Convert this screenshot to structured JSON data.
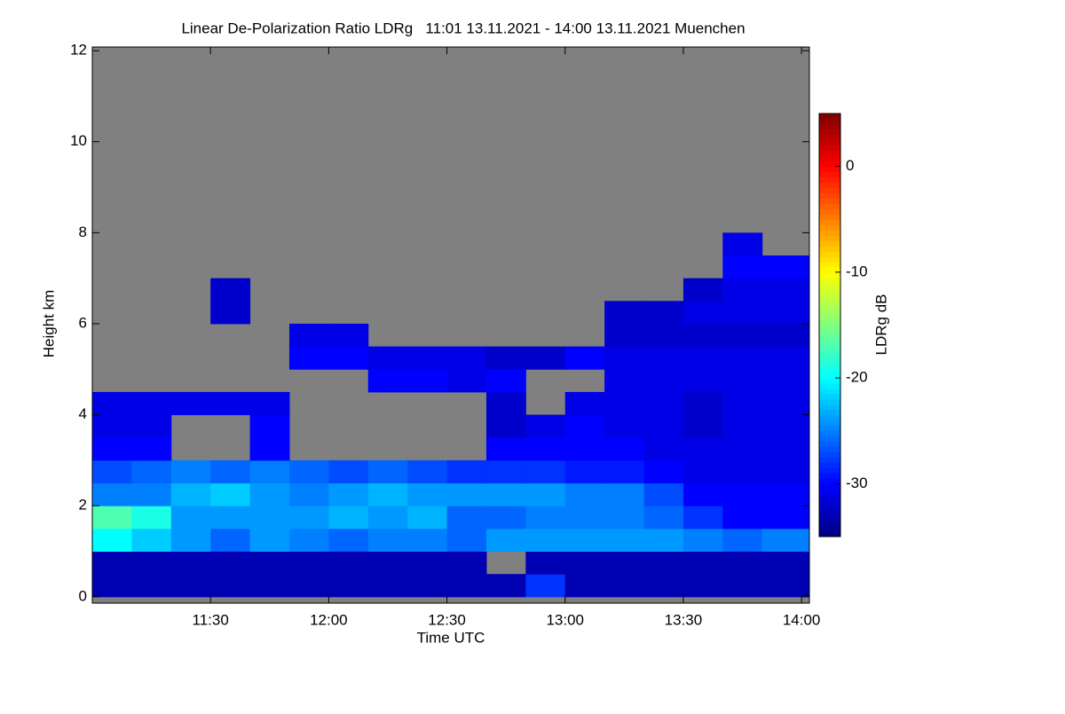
{
  "chart_data": {
    "type": "heatmap",
    "title": "Linear De-Polarization Ratio LDRg   11:01 13.11.2021 - 14:00 13.11.2021 Muenchen",
    "x_label": "Time UTC",
    "y_label": "Height km",
    "colorbar_label": "LDRg dB",
    "colormap": "jet",
    "missing_color": "#808080",
    "x": [
      "11:00",
      "11:10",
      "11:20",
      "11:30",
      "11:40",
      "11:50",
      "12:00",
      "12:10",
      "12:20",
      "12:30",
      "12:40",
      "12:50",
      "13:00",
      "13:10",
      "13:20",
      "13:30",
      "13:40",
      "13:50",
      "14:02"
    ],
    "y": [
      0,
      0.5,
      1,
      1.5,
      2,
      2.5,
      3,
      3.5,
      4,
      4.5,
      5,
      5.5,
      6,
      6.5,
      7,
      7.5,
      8
    ],
    "values": [
      [
        -33,
        -33,
        -33,
        -33,
        -33,
        -33,
        -33,
        -33,
        -33,
        -33,
        -33,
        -28,
        -33,
        -33,
        -33,
        -33,
        -33,
        -33
      ],
      [
        -33,
        -33,
        -33,
        -33,
        -33,
        -33,
        -33,
        -33,
        -33,
        -33,
        null,
        -33,
        -33,
        -33,
        -33,
        -33,
        -33,
        -33
      ],
      [
        -20,
        -22,
        -24,
        -26,
        -24,
        -25,
        -26,
        -25,
        -25,
        -26,
        -24,
        -24,
        -24,
        -24,
        -24,
        -25,
        -26,
        -25
      ],
      [
        -17,
        -19,
        -24,
        -24,
        -24,
        -24,
        -23,
        -24,
        -23,
        -26,
        -26,
        -25,
        -25,
        -25,
        -26,
        -28,
        -30,
        -30
      ],
      [
        -25,
        -25,
        -23,
        -22,
        -24,
        -25,
        -24,
        -23,
        -24,
        -24,
        -24,
        -24,
        -25,
        -25,
        -27,
        -30,
        -30,
        -30
      ],
      [
        -27,
        -26,
        -25,
        -26,
        -25,
        -26,
        -27,
        -26,
        -27,
        -28,
        -28,
        -28,
        -29,
        -29,
        -30,
        -31,
        -31,
        -31
      ],
      [
        -30,
        -30,
        null,
        null,
        -30,
        null,
        null,
        null,
        null,
        null,
        -30,
        -30,
        -30,
        -30,
        -31,
        -31,
        -31,
        -31
      ],
      [
        -31,
        -31,
        null,
        null,
        -30,
        null,
        null,
        null,
        null,
        null,
        -32,
        -31,
        -30,
        -31,
        -31,
        -32,
        -31,
        -31
      ],
      [
        -31,
        -31,
        -31,
        -31,
        -31,
        null,
        null,
        null,
        null,
        null,
        -32,
        null,
        -31,
        -31,
        -31,
        -32,
        -31,
        -31
      ],
      [
        null,
        null,
        null,
        null,
        null,
        null,
        null,
        -30,
        -30,
        -31,
        -30,
        null,
        null,
        -31,
        -31,
        -31,
        -31,
        -31
      ],
      [
        null,
        null,
        null,
        null,
        null,
        -30,
        -30,
        -31,
        -31,
        -31,
        -32,
        -32,
        -30,
        -31,
        -31,
        -31,
        -31,
        -31
      ],
      [
        null,
        null,
        null,
        null,
        null,
        -31,
        -31,
        null,
        null,
        null,
        null,
        null,
        null,
        -32,
        -32,
        -32,
        -32,
        -32
      ],
      [
        null,
        null,
        null,
        -32,
        null,
        null,
        null,
        null,
        null,
        null,
        null,
        null,
        null,
        -32,
        -32,
        -31,
        -31,
        -31
      ],
      [
        null,
        null,
        null,
        -32,
        null,
        null,
        null,
        null,
        null,
        null,
        null,
        null,
        null,
        null,
        null,
        -32,
        -31,
        -31
      ],
      [
        null,
        null,
        null,
        null,
        null,
        null,
        null,
        null,
        null,
        null,
        null,
        null,
        null,
        null,
        null,
        null,
        -30,
        -30
      ],
      [
        null,
        null,
        null,
        null,
        null,
        null,
        null,
        null,
        null,
        null,
        null,
        null,
        null,
        null,
        null,
        null,
        -31,
        null
      ]
    ],
    "xlim": [
      "11:00",
      "14:02"
    ],
    "xticks": [
      "11:30",
      "12:00",
      "12:30",
      "13:00",
      "13:30",
      "14:00"
    ],
    "ylim": [
      -0.14,
      12.08
    ],
    "yticks": [
      0,
      2,
      4,
      6,
      8,
      10,
      12
    ],
    "zlim": [
      -35,
      5
    ],
    "zticks": [
      -30,
      -20,
      -10,
      0
    ]
  }
}
